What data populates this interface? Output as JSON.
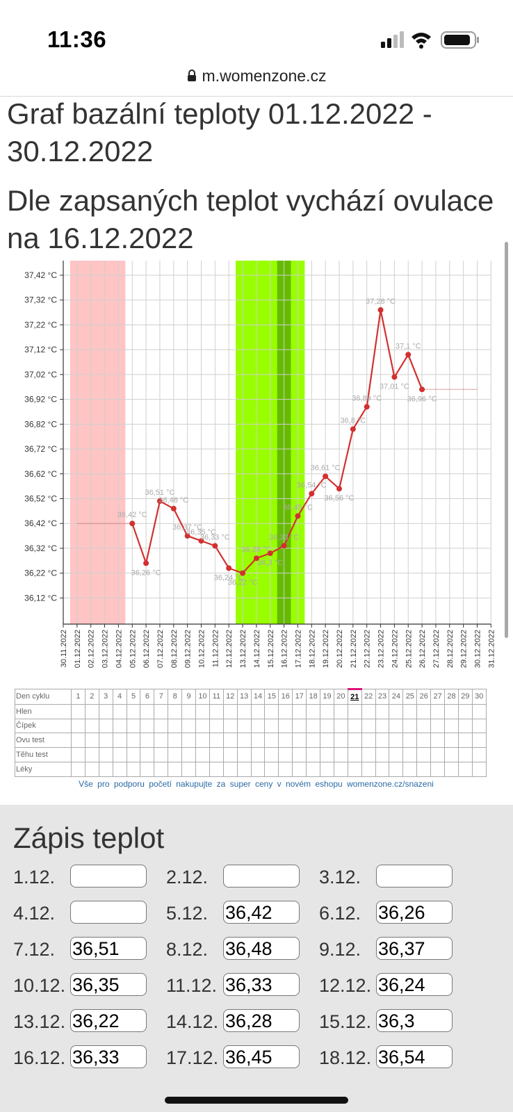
{
  "status_bar": {
    "time": "11:36"
  },
  "browser": {
    "url": "m.womenzone.cz"
  },
  "page": {
    "title": "Graf bazální teploty 01.12.2022 - 30.12.2022",
    "subtitle": "Dle zapsaných teplot vychází ovulace na 16.12.2022"
  },
  "chart_data": {
    "type": "line",
    "unit_suffix": " °C",
    "y_ticks": [
      "37,42 °C",
      "37,32 °C",
      "37,22 °C",
      "37,12 °C",
      "37,02 °C",
      "36,92 °C",
      "36,82 °C",
      "36,72 °C",
      "36,62 °C",
      "36,52 °C",
      "36,42 °C",
      "36,32 °C",
      "36,22 °C",
      "36,12 °C"
    ],
    "y_tick_values": [
      37.42,
      37.32,
      37.22,
      37.12,
      37.02,
      36.92,
      36.82,
      36.72,
      36.62,
      36.52,
      36.42,
      36.32,
      36.22,
      36.12
    ],
    "x_labels": [
      "30.11.2022",
      "01.12.2022",
      "02.12.2022",
      "03.12.2022",
      "04.12.2022",
      "05.12.2022",
      "06.12.2022",
      "07.12.2022",
      "08.12.2022",
      "09.12.2022",
      "10.12.2022",
      "11.12.2022",
      "12.12.2022",
      "13.12.2022",
      "14.12.2022",
      "15.12.2022",
      "16.12.2022",
      "17.12.2022",
      "18.12.2022",
      "19.12.2022",
      "20.12.2022",
      "21.12.2022",
      "22.12.2022",
      "23.12.2022",
      "24.12.2022",
      "25.12.2022",
      "26.12.2022",
      "27.12.2022",
      "28.12.2022",
      "29.12.2022",
      "30.12.2022",
      "31.12.2022"
    ],
    "points": [
      {
        "day": 5,
        "value": 36.42,
        "label": "36,42 °C"
      },
      {
        "day": 6,
        "value": 36.26,
        "label": "36,26 °C"
      },
      {
        "day": 7,
        "value": 36.51,
        "label": "36,51 °C"
      },
      {
        "day": 8,
        "value": 36.48,
        "label": "36,48 °C"
      },
      {
        "day": 9,
        "value": 36.37,
        "label": "36,37 °C"
      },
      {
        "day": 10,
        "value": 36.35,
        "label": "36,35 °C"
      },
      {
        "day": 11,
        "value": 36.33,
        "label": "36,33 °C"
      },
      {
        "day": 12,
        "value": 36.24,
        "label": "36,24 °C"
      },
      {
        "day": 13,
        "value": 36.22,
        "label": "36,22 °C"
      },
      {
        "day": 14,
        "value": 36.28,
        "label": "36,28 °C"
      },
      {
        "day": 15,
        "value": 36.3,
        "label": "36,3 °C"
      },
      {
        "day": 16,
        "value": 36.33,
        "label": "36,33 °C"
      },
      {
        "day": 17,
        "value": 36.45,
        "label": "36,45 °C"
      },
      {
        "day": 18,
        "value": 36.54,
        "label": "36,54 °C"
      },
      {
        "day": 19,
        "value": 36.61,
        "label": "36,61 °C"
      },
      {
        "day": 20,
        "value": 36.56,
        "label": "36,56 °C"
      },
      {
        "day": 21,
        "value": 36.8,
        "label": "36,8 °C"
      },
      {
        "day": 22,
        "value": 36.89,
        "label": "36,89 °C"
      },
      {
        "day": 23,
        "value": 37.28,
        "label": "37,28 °C"
      },
      {
        "day": 24,
        "value": 37.01,
        "label": "37,01 °C"
      },
      {
        "day": 25,
        "value": 37.1,
        "label": "37,1 °C"
      },
      {
        "day": 26,
        "value": 36.96,
        "label": "36,96 °C"
      }
    ],
    "baseline_before": {
      "from_day": 1,
      "to_day": 5,
      "value": 36.42
    },
    "baseline_after": {
      "from_day": 26,
      "to_day": 30,
      "value": 36.96
    },
    "bands": [
      {
        "from_day": 1,
        "to_day": 4,
        "kind": "menstruation",
        "color": "#ffc4c4"
      },
      {
        "from_day": 13,
        "to_day": 17,
        "kind": "fertile",
        "color": "#99ff00"
      },
      {
        "from_day": 16,
        "to_day": 16,
        "kind": "ovulation",
        "color": "#66bb00"
      }
    ],
    "line_color": "#d23030",
    "grid": true
  },
  "cycle_table": {
    "rows": [
      "Den cyklu",
      "Hlen",
      "Čípek",
      "Ovu test",
      "Těhu test",
      "Léky"
    ],
    "days": [
      "1",
      "2",
      "3",
      "4",
      "5",
      "6",
      "7",
      "8",
      "9",
      "10",
      "11",
      "12",
      "13",
      "14",
      "15",
      "16",
      "17",
      "18",
      "19",
      "20",
      "21",
      "22",
      "23",
      "24",
      "25",
      "26",
      "27",
      "28",
      "29",
      "30"
    ],
    "today": "21"
  },
  "shop_link": "Vše pro podporu početí nakupujte za super ceny v novém eshopu womenzone.cz/snazeni",
  "entry": {
    "title": "Zápis teplot",
    "cells": [
      {
        "label": "1.12.",
        "value": ""
      },
      {
        "label": "2.12.",
        "value": ""
      },
      {
        "label": "3.12.",
        "value": ""
      },
      {
        "label": "4.12.",
        "value": ""
      },
      {
        "label": "5.12.",
        "value": "36,42"
      },
      {
        "label": "6.12.",
        "value": "36,26"
      },
      {
        "label": "7.12.",
        "value": "36,51"
      },
      {
        "label": "8.12.",
        "value": "36,48"
      },
      {
        "label": "9.12.",
        "value": "36,37"
      },
      {
        "label": "10.12.",
        "value": "36,35"
      },
      {
        "label": "11.12.",
        "value": "36,33"
      },
      {
        "label": "12.12.",
        "value": "36,24"
      },
      {
        "label": "13.12.",
        "value": "36,22"
      },
      {
        "label": "14.12.",
        "value": "36,28"
      },
      {
        "label": "15.12.",
        "value": "36,3"
      },
      {
        "label": "16.12.",
        "value": "36,33"
      },
      {
        "label": "17.12.",
        "value": "36,45"
      },
      {
        "label": "18.12.",
        "value": "36,54"
      }
    ]
  }
}
